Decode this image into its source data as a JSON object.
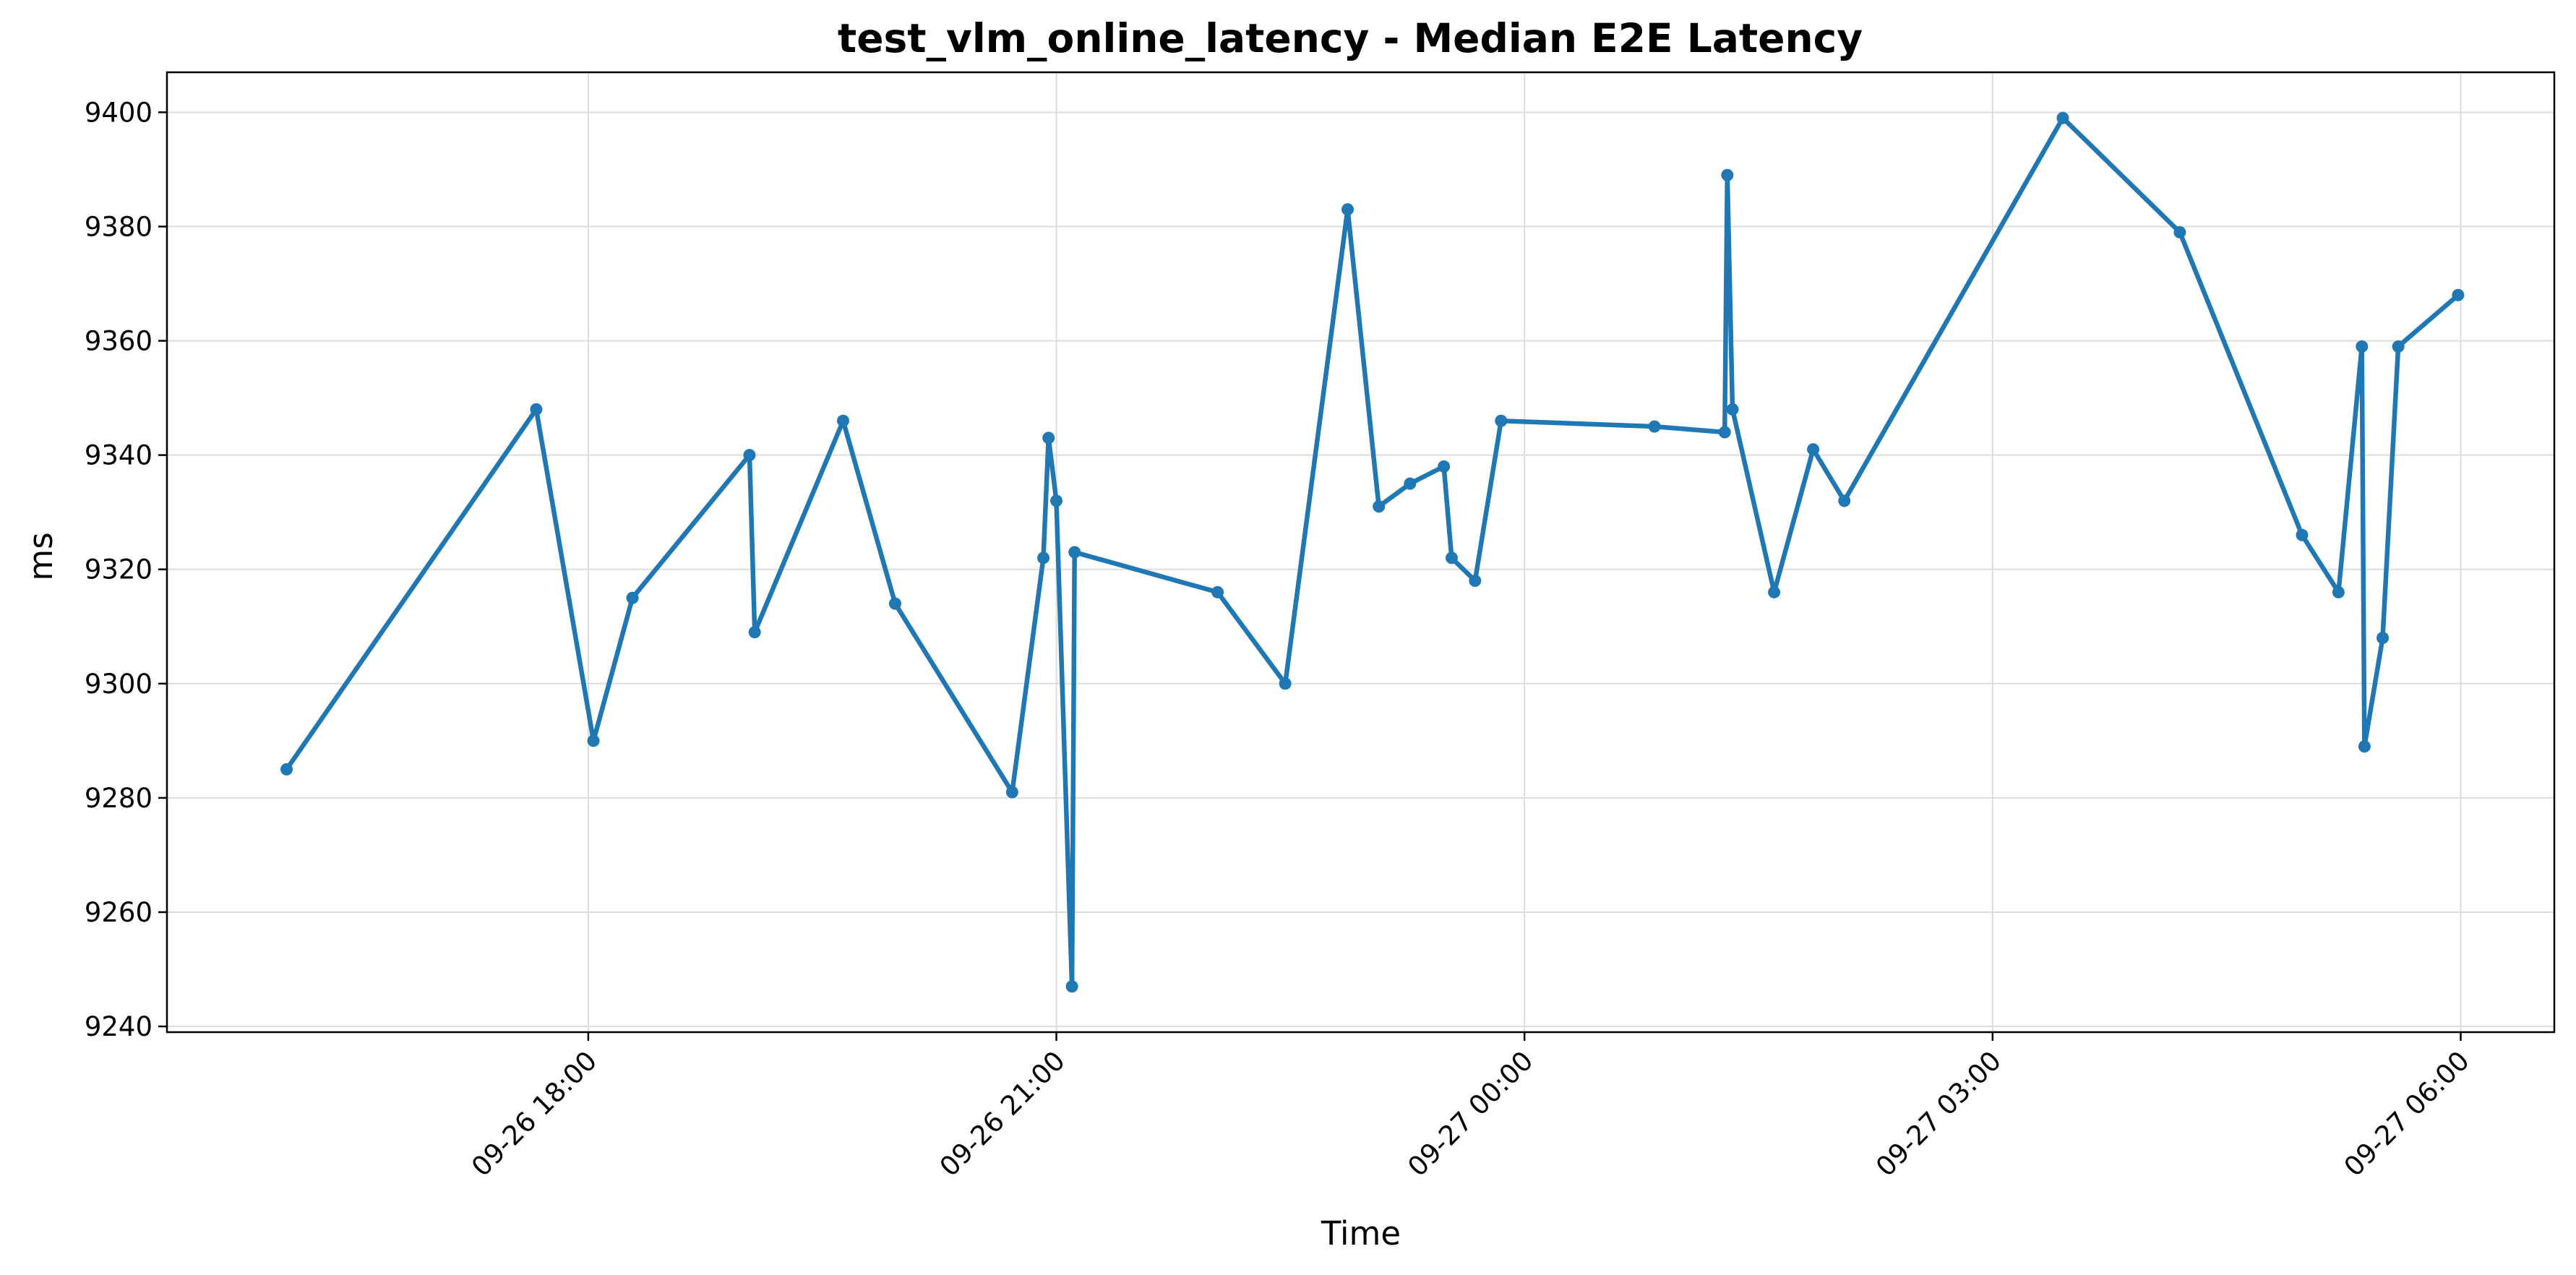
{
  "chart_data": {
    "type": "line",
    "title": "test_vlm_online_latency - Median E2E Latency",
    "xlabel": "Time",
    "ylabel": "ms",
    "ylim": [
      9239,
      9407
    ],
    "xlim": [
      "2025-09-26 15:18",
      "2025-09-27 06:36"
    ],
    "grid": true,
    "y_ticks": [
      9240,
      9260,
      9280,
      9300,
      9320,
      9340,
      9360,
      9380,
      9400
    ],
    "x_ticks": [
      {
        "t": "2025-09-26 18:00",
        "label": "09-26 18:00"
      },
      {
        "t": "2025-09-26 21:00",
        "label": "09-26 21:00"
      },
      {
        "t": "2025-09-27 00:00",
        "label": "09-27 00:00"
      },
      {
        "t": "2025-09-27 03:00",
        "label": "09-27 03:00"
      },
      {
        "t": "2025-09-27 06:00",
        "label": "09-27 06:00"
      }
    ],
    "color": "#1f77b4",
    "series": [
      {
        "points": [
          {
            "x": "2025-09-26 16:04",
            "y": 9285
          },
          {
            "x": "2025-09-26 17:40",
            "y": 9348
          },
          {
            "x": "2025-09-26 18:02",
            "y": 9290
          },
          {
            "x": "2025-09-26 18:17",
            "y": 9315
          },
          {
            "x": "2025-09-26 19:02",
            "y": 9340
          },
          {
            "x": "2025-09-26 19:04",
            "y": 9309
          },
          {
            "x": "2025-09-26 19:38",
            "y": 9346
          },
          {
            "x": "2025-09-26 19:58",
            "y": 9314
          },
          {
            "x": "2025-09-26 20:43",
            "y": 9281
          },
          {
            "x": "2025-09-26 20:55",
            "y": 9322
          },
          {
            "x": "2025-09-26 20:57",
            "y": 9343
          },
          {
            "x": "2025-09-26 21:00",
            "y": 9332
          },
          {
            "x": "2025-09-26 21:06",
            "y": 9247
          },
          {
            "x": "2025-09-26 21:07",
            "y": 9323
          },
          {
            "x": "2025-09-26 22:02",
            "y": 9316
          },
          {
            "x": "2025-09-26 22:28",
            "y": 9300
          },
          {
            "x": "2025-09-26 22:52",
            "y": 9383
          },
          {
            "x": "2025-09-26 23:04",
            "y": 9331
          },
          {
            "x": "2025-09-26 23:16",
            "y": 9335
          },
          {
            "x": "2025-09-26 23:29",
            "y": 9338
          },
          {
            "x": "2025-09-26 23:32",
            "y": 9322
          },
          {
            "x": "2025-09-26 23:41",
            "y": 9318
          },
          {
            "x": "2025-09-26 23:51",
            "y": 9346
          },
          {
            "x": "2025-09-27 00:50",
            "y": 9345
          },
          {
            "x": "2025-09-27 01:17",
            "y": 9344
          },
          {
            "x": "2025-09-27 01:18",
            "y": 9389
          },
          {
            "x": "2025-09-27 01:20",
            "y": 9348
          },
          {
            "x": "2025-09-27 01:36",
            "y": 9316
          },
          {
            "x": "2025-09-27 01:51",
            "y": 9341
          },
          {
            "x": "2025-09-27 02:03",
            "y": 9332
          },
          {
            "x": "2025-09-27 03:27",
            "y": 9399
          },
          {
            "x": "2025-09-27 04:12",
            "y": 9379
          },
          {
            "x": "2025-09-27 04:59",
            "y": 9326
          },
          {
            "x": "2025-09-27 05:13",
            "y": 9316
          },
          {
            "x": "2025-09-27 05:22",
            "y": 9359
          },
          {
            "x": "2025-09-27 05:23",
            "y": 9289
          },
          {
            "x": "2025-09-27 05:30",
            "y": 9308
          },
          {
            "x": "2025-09-27 05:36",
            "y": 9359
          },
          {
            "x": "2025-09-27 05:59",
            "y": 9368
          }
        ]
      }
    ]
  }
}
